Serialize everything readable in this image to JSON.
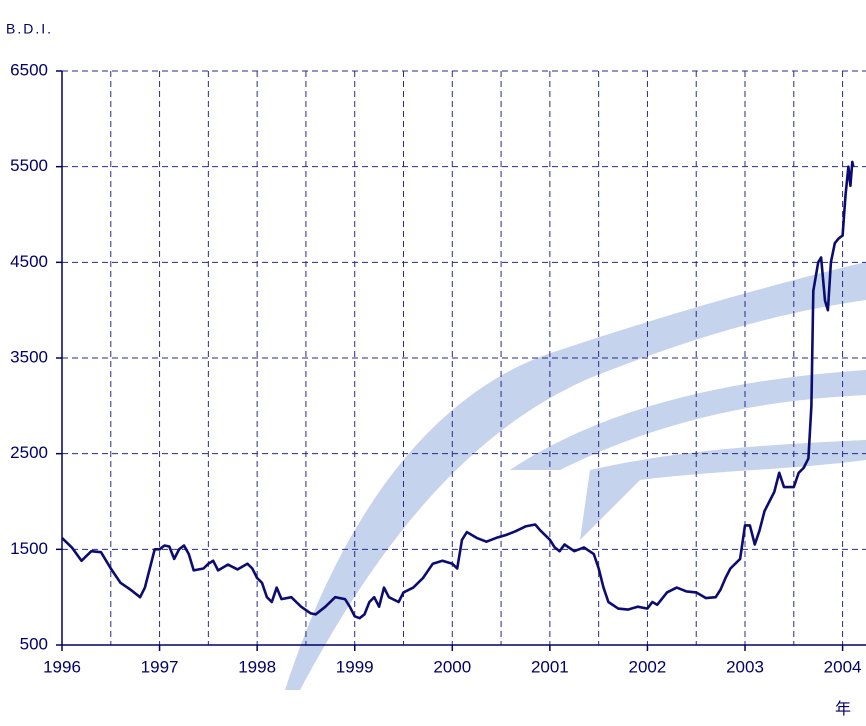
{
  "chart_data": {
    "type": "line",
    "y_label": "B.D.I.",
    "x_label": "年",
    "x": [
      1996.0,
      1996.1,
      1996.2,
      1996.3,
      1996.4,
      1996.5,
      1996.6,
      1996.7,
      1996.8,
      1996.85,
      1996.9,
      1996.95,
      1997.0,
      1997.05,
      1997.1,
      1997.15,
      1997.2,
      1997.25,
      1997.3,
      1997.35,
      1997.45,
      1997.5,
      1997.55,
      1997.6,
      1997.7,
      1997.8,
      1997.9,
      1997.95,
      1998.0,
      1998.05,
      1998.1,
      1998.15,
      1998.2,
      1998.25,
      1998.35,
      1998.45,
      1998.55,
      1998.6,
      1998.7,
      1998.8,
      1998.9,
      1998.95,
      1999.0,
      1999.05,
      1999.1,
      1999.15,
      1999.2,
      1999.25,
      1999.3,
      1999.35,
      1999.45,
      1999.5,
      1999.6,
      1999.7,
      1999.8,
      1999.9,
      2000.0,
      2000.05,
      2000.1,
      2000.15,
      2000.25,
      2000.35,
      2000.45,
      2000.55,
      2000.65,
      2000.75,
      2000.85,
      2000.9,
      2001.0,
      2001.05,
      2001.1,
      2001.15,
      2001.25,
      2001.35,
      2001.45,
      2001.5,
      2001.55,
      2001.6,
      2001.7,
      2001.8,
      2001.9,
      2002.0,
      2002.05,
      2002.1,
      2002.2,
      2002.3,
      2002.4,
      2002.5,
      2002.6,
      2002.7,
      2002.75,
      2002.8,
      2002.85,
      2002.95,
      2003.0,
      2003.05,
      2003.1,
      2003.15,
      2003.2,
      2003.3,
      2003.35,
      2003.4,
      2003.5,
      2003.55,
      2003.6,
      2003.65,
      2003.68,
      2003.7,
      2003.75,
      2003.78,
      2003.82,
      2003.85,
      2003.88,
      2003.92,
      2003.96,
      2004.0,
      2004.03,
      2004.06,
      2004.08,
      2004.1,
      2004.11
    ],
    "series": [
      {
        "name": "B.D.I.",
        "color": "#0c0c70",
        "values": [
          1620,
          1520,
          1380,
          1480,
          1470,
          1300,
          1150,
          1080,
          1000,
          1100,
          1300,
          1500,
          1500,
          1540,
          1530,
          1400,
          1500,
          1540,
          1450,
          1280,
          1300,
          1350,
          1380,
          1280,
          1340,
          1290,
          1350,
          1300,
          1200,
          1150,
          1000,
          950,
          1100,
          980,
          1000,
          900,
          830,
          820,
          900,
          1000,
          980,
          900,
          800,
          780,
          820,
          950,
          1000,
          900,
          1100,
          1000,
          950,
          1050,
          1100,
          1200,
          1350,
          1380,
          1350,
          1300,
          1600,
          1680,
          1620,
          1580,
          1620,
          1650,
          1690,
          1740,
          1760,
          1700,
          1600,
          1520,
          1480,
          1550,
          1480,
          1520,
          1450,
          1300,
          1100,
          950,
          880,
          870,
          900,
          880,
          950,
          920,
          1050,
          1100,
          1060,
          1050,
          990,
          1000,
          1080,
          1200,
          1300,
          1400,
          1750,
          1750,
          1550,
          1700,
          1900,
          2100,
          2300,
          2150,
          2150,
          2300,
          2350,
          2450,
          3000,
          4200,
          4500,
          4550,
          4100,
          4000,
          4500,
          4700,
          4750,
          4780,
          5200,
          5500,
          5300,
          5550,
          5500
        ]
      }
    ],
    "xlim": [
      1996,
      2004.24
    ],
    "xticks": [
      1996,
      1997,
      1998,
      1999,
      2000,
      2001,
      2002,
      2003,
      2004
    ],
    "ylim": [
      500,
      6500
    ],
    "yticks": [
      500,
      1500,
      2500,
      3500,
      4500,
      5500,
      6500
    ],
    "grid": true
  }
}
